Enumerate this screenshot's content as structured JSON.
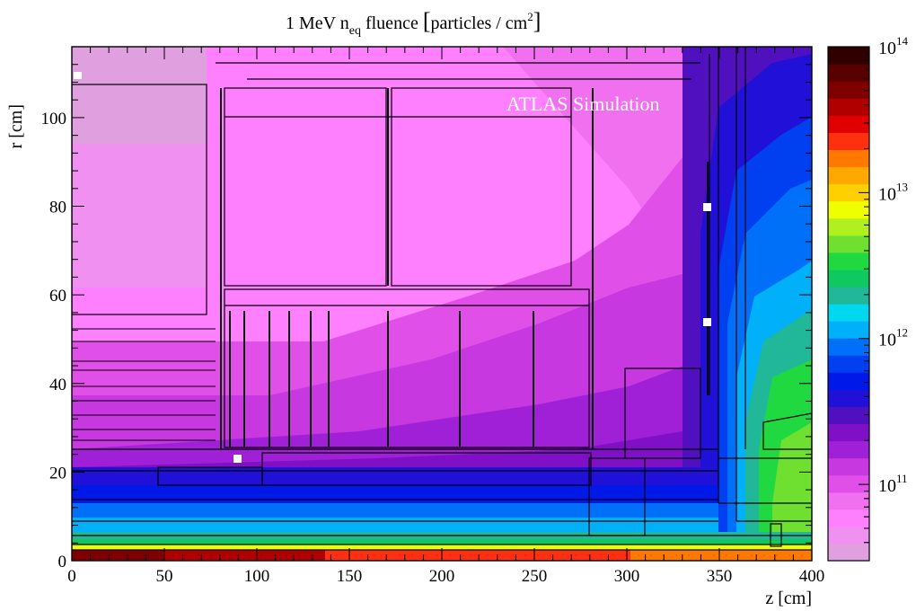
{
  "chart_data": {
    "type": "heatmap",
    "title_main": "1 MeV n",
    "title_sub": "eq",
    "title_rest": " fluence ",
    "title_units": "particles / cm",
    "title_units_exp": "2",
    "xlabel": "z [cm]",
    "ylabel": "r [cm]",
    "xlim": [
      0,
      400
    ],
    "ylim": [
      0,
      116
    ],
    "x_ticks": [
      "0",
      "50",
      "100",
      "150",
      "200",
      "250",
      "300",
      "350",
      "400"
    ],
    "x_tick_values": [
      0,
      50,
      100,
      150,
      200,
      250,
      300,
      350,
      400
    ],
    "y_ticks": [
      "0",
      "20",
      "40",
      "60",
      "80",
      "100"
    ],
    "y_tick_values": [
      0,
      20,
      40,
      60,
      80,
      100
    ],
    "annotation": "ATLAS Simulation",
    "colorbar": {
      "scale": "log",
      "range": [
        30000000000.0,
        100000000000000.0
      ],
      "labels": [
        {
          "base": "10",
          "exp": "11",
          "value": 100000000000.0
        },
        {
          "base": "10",
          "exp": "12",
          "value": 1000000000000.0
        },
        {
          "base": "10",
          "exp": "13",
          "value": 10000000000000.0
        },
        {
          "base": "10",
          "exp": "14",
          "value": 100000000000000.0
        }
      ],
      "colors": [
        "#e0a0e0",
        "#f090f0",
        "#ff80ff",
        "#f070f0",
        "#e050e8",
        "#c838e0",
        "#a020d8",
        "#8010c8",
        "#5010c0",
        "#2010d8",
        "#0018e8",
        "#0040f0",
        "#0070f8",
        "#00b0f8",
        "#00d8f0",
        "#20b898",
        "#10c860",
        "#20d840",
        "#70e030",
        "#b0f020",
        "#f0ff00",
        "#ffd000",
        "#ffa800",
        "#ff7800",
        "#ff3010",
        "#e00000",
        "#b00000",
        "#800000",
        "#580000",
        "#300000"
      ]
    },
    "fluence_regions": [
      {
        "z": [
          0,
          50
        ],
        "r": [
          0,
          2
        ],
        "fluence": 60000000000000.0
      },
      {
        "z": [
          50,
          300
        ],
        "r": [
          0,
          2
        ],
        "fluence": 20000000000000.0
      },
      {
        "z": [
          300,
          400
        ],
        "r": [
          0,
          2
        ],
        "fluence": 12000000000000.0
      },
      {
        "z": [
          0,
          400
        ],
        "r": [
          2,
          4
        ],
        "fluence": 5000000000000.0
      },
      {
        "z": [
          0,
          400
        ],
        "r": [
          4,
          10
        ],
        "fluence": 1500000000000.0
      },
      {
        "z": [
          0,
          400
        ],
        "r": [
          10,
          20
        ],
        "fluence": 400000000000.0
      },
      {
        "z": [
          0,
          400
        ],
        "r": [
          20,
          30
        ],
        "fluence": 200000000000.0
      },
      {
        "z": [
          0,
          300
        ],
        "r": [
          30,
          60
        ],
        "fluence": 120000000000.0
      },
      {
        "z": [
          0,
          300
        ],
        "r": [
          60,
          116
        ],
        "fluence": 70000000000.0
      },
      {
        "z": [
          300,
          400
        ],
        "r": [
          30,
          116
        ],
        "fluence": 1000000000000.0
      }
    ]
  }
}
